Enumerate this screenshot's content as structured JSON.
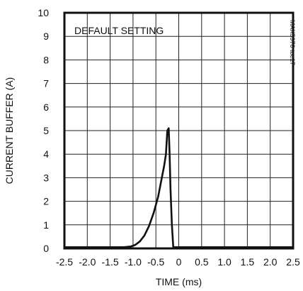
{
  "chart_data": {
    "type": "line",
    "xlabel": "TIME (ms)",
    "ylabel": "CURRENT BUFFER (A)",
    "xlim": [
      -2.5,
      2.5
    ],
    "ylim": [
      0,
      10
    ],
    "x_ticks": [
      -2.5,
      -2.0,
      -1.5,
      -1.0,
      -0.5,
      0,
      0.5,
      1.0,
      1.5,
      2.0,
      2.5
    ],
    "x_tick_labels": [
      "-2.5",
      "-2.0",
      "-1.5",
      "-1.0",
      "-0.5",
      "0",
      "0.5",
      "1.0",
      "1.5",
      "2.0",
      "2.5"
    ],
    "y_ticks": [
      0,
      1,
      2,
      3,
      4,
      5,
      6,
      7,
      8,
      9,
      10
    ],
    "y_tick_labels": [
      "0",
      "1",
      "2",
      "3",
      "4",
      "5",
      "6",
      "7",
      "8",
      "9",
      "10"
    ],
    "grid": true,
    "annotations": [
      "DEFAULT SETTING"
    ],
    "watermark": "MAX5970 toc17",
    "series": [
      {
        "x": [
          -2.5,
          -2.0,
          -1.5,
          -1.2,
          -1.05,
          -0.95,
          -0.85,
          -0.75,
          -0.65,
          -0.55,
          -0.45,
          -0.38,
          -0.32,
          -0.28,
          -0.25,
          -0.22,
          -0.2,
          -0.18,
          -0.15,
          -0.12,
          0.0,
          0.5,
          1.0,
          1.5,
          2.0,
          2.5
        ],
        "y": [
          0.05,
          0.05,
          0.05,
          0.05,
          0.08,
          0.15,
          0.3,
          0.55,
          0.95,
          1.5,
          2.2,
          2.9,
          3.5,
          4.0,
          5.0,
          5.1,
          4.0,
          2.5,
          1.0,
          0.05,
          0.05,
          0.05,
          0.05,
          0.05,
          0.05,
          0.05
        ]
      }
    ]
  }
}
